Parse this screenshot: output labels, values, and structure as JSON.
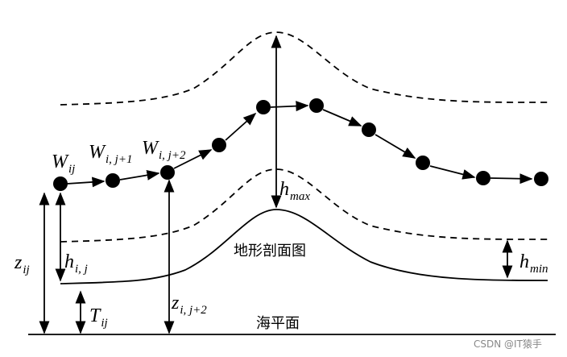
{
  "labels": [
    {
      "main": "W",
      "sub": "ij"
    },
    {
      "main": "W",
      "sub": "i, j+1"
    },
    {
      "main": "W",
      "sub": "i, j+2"
    },
    {
      "main": "h",
      "sub": "max"
    },
    {
      "main": "h",
      "sub": "min"
    },
    {
      "main": "z",
      "sub": "ij"
    },
    {
      "main": "h",
      "sub": "i, j"
    },
    {
      "main": "T",
      "sub": "ij"
    },
    {
      "main": "z",
      "sub": "i, j+2"
    }
  ],
  "terrain_label": "地形剖面图",
  "sea_level_label": "海平面",
  "watermark": "CSDN @IT猿手"
}
